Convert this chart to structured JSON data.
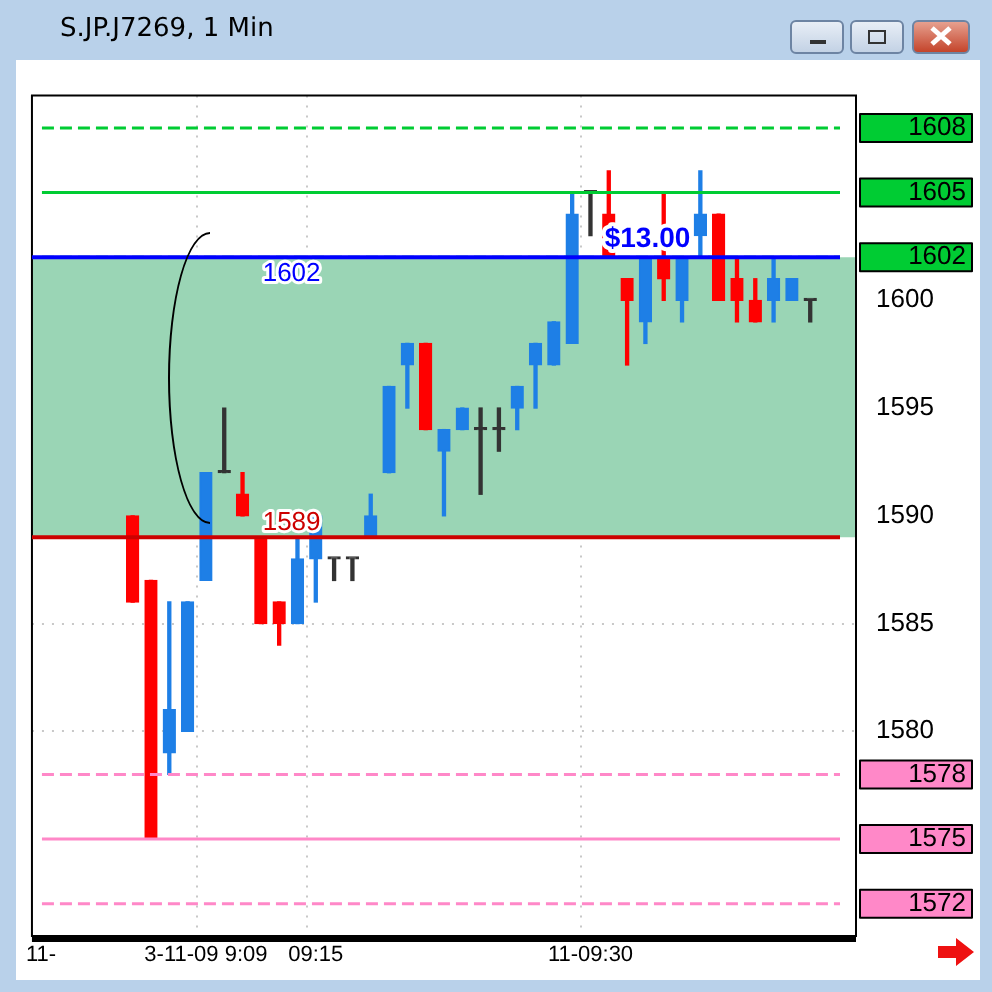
{
  "chart_data": {
    "type": "candlestick",
    "title": "S.JP.J7269, 1 Min",
    "categories": [
      "11-",
      null,
      null,
      null,
      null,
      null,
      null,
      null,
      null,
      "3-11-09 9:09",
      null,
      null,
      null,
      null,
      null,
      "09:15",
      null,
      null,
      null,
      null,
      null,
      null,
      null,
      null,
      null,
      null,
      null,
      null,
      null,
      null,
      "11-09:30",
      null,
      null,
      null,
      null,
      null,
      null,
      null,
      null,
      null,
      null,
      null,
      null,
      null,
      null
    ],
    "ohlc": [
      null,
      null,
      null,
      null,
      null,
      [
        1590,
        1590,
        1586,
        1586
      ],
      [
        1587,
        1587,
        1575,
        1575
      ],
      [
        1579,
        1586,
        1578,
        1581
      ],
      [
        1580,
        1586,
        1580,
        1586
      ],
      [
        1587,
        1592,
        1587,
        1592
      ],
      [
        1592,
        1595,
        1592,
        1592
      ],
      [
        1591,
        1592,
        1590,
        1590
      ],
      [
        1589,
        1589,
        1585,
        1585
      ],
      [
        1586,
        1586,
        1584,
        1585
      ],
      [
        1585,
        1589,
        1585,
        1588
      ],
      [
        1588,
        1590,
        1586,
        1590
      ],
      [
        1588,
        1588,
        1587,
        1588
      ],
      [
        1588,
        1588,
        1587,
        1588
      ],
      [
        1589,
        1591,
        1589,
        1590
      ],
      [
        1592,
        1596,
        1592,
        1596
      ],
      [
        1597,
        1598,
        1595,
        1598
      ],
      [
        1598,
        1598,
        1594,
        1594
      ],
      [
        1593,
        1594,
        1590,
        1594
      ],
      [
        1594,
        1595,
        1594,
        1595
      ],
      [
        1594,
        1595,
        1591,
        1594
      ],
      [
        1594,
        1595,
        1593,
        1594
      ],
      [
        1595,
        1596,
        1594,
        1596
      ],
      [
        1597,
        1598,
        1595,
        1598
      ],
      [
        1597,
        1599,
        1597,
        1599
      ],
      [
        1598,
        1605,
        1598,
        1604
      ],
      [
        1605,
        1605,
        1603,
        1605
      ],
      [
        1604,
        1606,
        1602,
        1602
      ],
      [
        1601,
        1601,
        1597,
        1600
      ],
      [
        1599,
        1602,
        1598,
        1602
      ],
      [
        1602,
        1605,
        1600,
        1601
      ],
      [
        1600,
        1602,
        1599,
        1602
      ],
      [
        1603,
        1606,
        1602,
        1604
      ],
      [
        1604,
        1604,
        1600,
        1600
      ],
      [
        1601,
        1602,
        1599,
        1600
      ],
      [
        1600,
        1601,
        1599,
        1599
      ],
      [
        1600,
        1602,
        1599,
        1601
      ],
      [
        1600,
        1601,
        1600,
        1601
      ],
      [
        1600,
        1600,
        1599,
        1600
      ],
      null,
      null
    ],
    "colors": [
      null,
      null,
      null,
      null,
      null,
      "#ff0000",
      "#ff0000",
      "#1e7fe6",
      "#1e7fe6",
      "#1e7fe6",
      "#333333",
      "#ff0000",
      "#ff0000",
      "#ff0000",
      "#1e7fe6",
      "#1e7fe6",
      "#333333",
      "#333333",
      "#1e7fe6",
      "#1e7fe6",
      "#1e7fe6",
      "#ff0000",
      "#1e7fe6",
      "#1e7fe6",
      "#333333",
      "#333333",
      "#1e7fe6",
      "#1e7fe6",
      "#1e7fe6",
      "#1e7fe6",
      "#333333",
      "#ff0000",
      "#ff0000",
      "#1e7fe6",
      "#ff0000",
      "#1e7fe6",
      "#1e7fe6",
      "#ff0000",
      "#ff0000",
      "#ff0000",
      "#1e7fe6",
      "#1e7fe6",
      "#333333",
      null,
      null
    ],
    "ylim": [
      1570.5,
      1609.5
    ],
    "yticks": [
      1580,
      1585,
      1590,
      1595,
      1600
    ],
    "grid": true,
    "legend": false,
    "ref_lines": [
      {
        "axis": "y",
        "value": 1608,
        "label": "1608",
        "color": "#00cc33",
        "line_style": "dashed"
      },
      {
        "axis": "y",
        "value": 1605,
        "label": "1605",
        "color": "#00cc33",
        "line_style": "solid"
      },
      {
        "axis": "y",
        "value": 1602,
        "label": "1602",
        "color": "#00cc33",
        "line_style": "dashed"
      },
      {
        "axis": "y",
        "value": 1578,
        "label": "1578",
        "color": "#ff88c8",
        "line_style": "dashed"
      },
      {
        "axis": "y",
        "value": 1575,
        "label": "1575",
        "color": "#ff88c8",
        "line_style": "solid"
      },
      {
        "axis": "y",
        "value": 1572,
        "label": "1572",
        "color": "#ff88c8",
        "line_style": "dashed"
      },
      {
        "axis": "y",
        "value": 1602,
        "label": "1602",
        "color": "#0000ff"
      },
      {
        "axis": "y",
        "value": 1589,
        "label": "1589",
        "color": "#cc0000"
      }
    ],
    "bands": [
      {
        "axis": "y",
        "from": 1589,
        "to": 1602,
        "color": "#9ad5b5"
      }
    ],
    "annotations": [
      {
        "text": "$13.00",
        "y": 1602
      }
    ]
  }
}
